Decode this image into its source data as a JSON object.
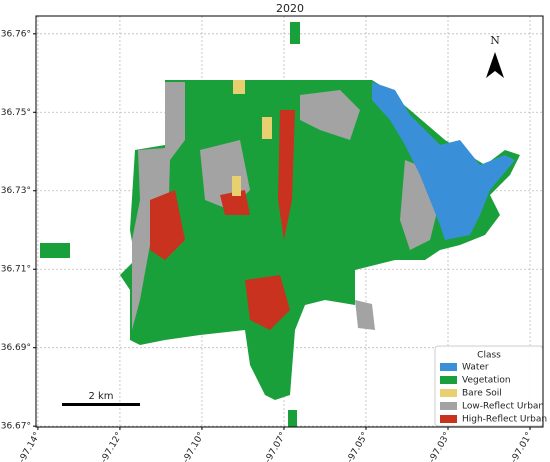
{
  "title": "2020",
  "axes": {
    "xlim": [
      -97.1395,
      -97.0066
    ],
    "ylim": [
      36.6713,
      36.7682
    ],
    "xticks": [
      {
        "value": -97.139,
        "label": "-97.14°"
      },
      {
        "value": -97.1175,
        "label": "-97.12°"
      },
      {
        "value": -97.096,
        "label": "-97.10°"
      },
      {
        "value": -97.0745,
        "label": "-97.07°"
      },
      {
        "value": -97.053,
        "label": "-97.05°"
      },
      {
        "value": -97.0315,
        "label": "-97.03°"
      },
      {
        "value": -97.01,
        "label": "-97.01°"
      }
    ],
    "yticks": [
      {
        "value": 36.764,
        "label": "36.76°"
      },
      {
        "value": 36.7455,
        "label": "36.75°"
      },
      {
        "value": 36.727,
        "label": "36.73°"
      },
      {
        "value": 36.7085,
        "label": "36.71°"
      },
      {
        "value": 36.69,
        "label": "36.69°"
      },
      {
        "value": 36.6715,
        "label": "36.67°"
      }
    ],
    "grid": true
  },
  "north_arrow": "N",
  "scale_bar": "2 km",
  "legend": {
    "title": "Class",
    "items": [
      {
        "name": "Water",
        "color": "#3a8fd9"
      },
      {
        "name": "Vegetation",
        "color": "#19a03a"
      },
      {
        "name": "Bare Soil",
        "color": "#e8d070"
      },
      {
        "name": "Low-Reflect Urban",
        "color": "#a3a3a3"
      },
      {
        "name": "High-Reflect Urban",
        "color": "#c8321e"
      }
    ]
  }
}
